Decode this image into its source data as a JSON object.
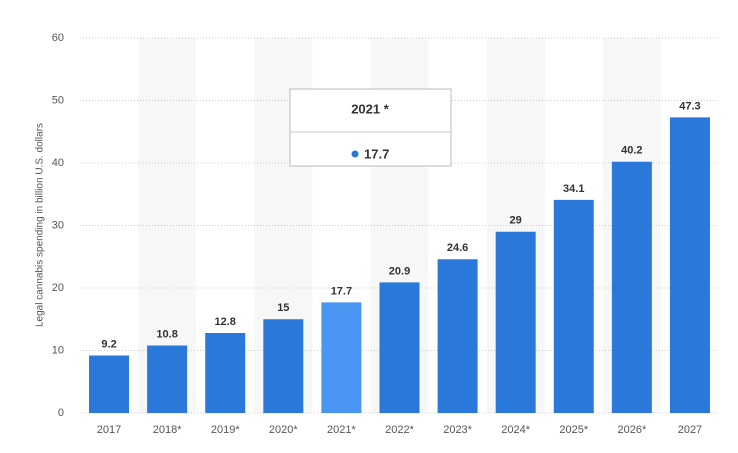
{
  "chart_data": {
    "type": "bar",
    "y_label": "Legal cannabis spending in billion U.S. dollars",
    "categories": [
      "2017",
      "2018*",
      "2019*",
      "2020*",
      "2021*",
      "2022*",
      "2023*",
      "2024*",
      "2025*",
      "2026*",
      "2027"
    ],
    "values": [
      9.2,
      10.8,
      12.8,
      15,
      17.7,
      20.9,
      24.6,
      29,
      34.1,
      40.2,
      47.3
    ],
    "colors": [
      "#2a78d9",
      "#2a78d9",
      "#2a78d9",
      "#2a78d9",
      "#4a94f2",
      "#2a78d9",
      "#2a78d9",
      "#2a78d9",
      "#2a78d9",
      "#2a78d9",
      "#2a78d9"
    ],
    "ylim": [
      0,
      60
    ],
    "yticks": [
      0,
      10,
      20,
      30,
      40,
      50,
      60
    ],
    "grid": true,
    "tooltip_title": "2021 *"
  }
}
